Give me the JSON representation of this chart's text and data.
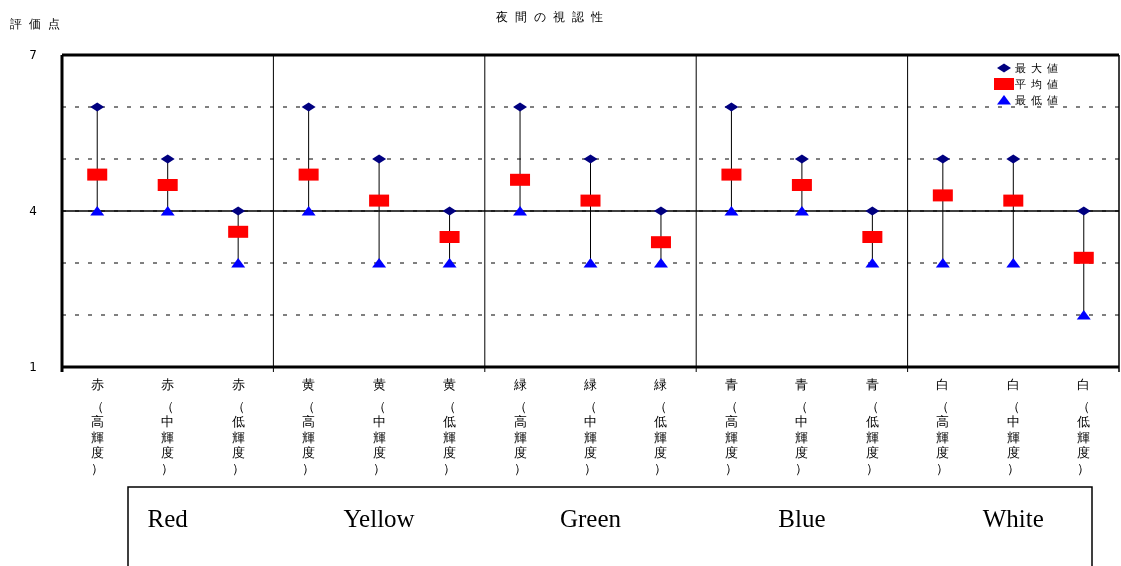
{
  "chart_data": {
    "type": "scatter",
    "title": "夜間の視認性",
    "ylabel": "評価点",
    "categories": [
      "赤（高輝度）",
      "赤（中輝度）",
      "赤（低輝度）",
      "黄（高輝度）",
      "黄（中輝度）",
      "黄（低輝度）",
      "緑（高輝度）",
      "緑（中輝度）",
      "緑（低輝度）",
      "青（高輝度）",
      "青（中輝度）",
      "青（低輝度）",
      "白（高輝度）",
      "白（中輝度）",
      "白（低輝度）"
    ],
    "series": [
      {
        "name": "最大値",
        "color": "#000080",
        "marker": "diamond",
        "values": [
          6,
          5,
          4,
          6,
          5,
          4,
          6,
          5,
          4,
          6,
          5,
          4,
          5,
          5,
          4
        ]
      },
      {
        "name": "平均値",
        "color": "#ff0000",
        "marker": "square",
        "values": [
          4.7,
          4.5,
          3.6,
          4.7,
          4.2,
          3.5,
          4.6,
          4.2,
          3.4,
          4.7,
          4.5,
          3.5,
          4.3,
          4.2,
          3.1
        ]
      },
      {
        "name": "最低値",
        "color": "#0000ff",
        "marker": "triangle",
        "values": [
          4,
          4,
          3,
          4,
          3,
          3,
          4,
          3,
          3,
          4,
          4,
          3,
          3,
          3,
          2
        ]
      }
    ],
    "ylim": [
      1,
      7
    ],
    "yticks": [
      1,
      {
        "value": 2,
        "label": null
      },
      {
        "value": 3,
        "label": null
      },
      4,
      {
        "value": 5,
        "label": null
      },
      {
        "value": 6,
        "label": null
      },
      7
    ],
    "grid": "y",
    "ref_lines": [
      {
        "axis": "y",
        "value": 4,
        "color": "#000000",
        "line_style": "solid"
      }
    ],
    "legend": "top right",
    "annotations": [
      "Red",
      "Yellow",
      "Green",
      "Blue",
      "White"
    ]
  }
}
